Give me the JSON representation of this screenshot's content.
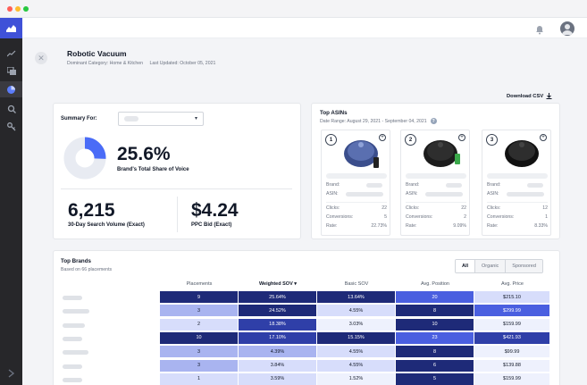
{
  "window": {
    "controls": [
      "close",
      "minimize",
      "maximize"
    ]
  },
  "sidebar": {
    "logo_icon": "hand-logo-icon",
    "items": [
      {
        "icon": "line-chart-icon",
        "active": false
      },
      {
        "icon": "layers-icon",
        "active": false
      },
      {
        "icon": "pie-chart-icon",
        "active": true
      },
      {
        "icon": "search-icon",
        "active": false
      },
      {
        "icon": "key-icon",
        "active": false
      }
    ],
    "expand_icon": "chevron-right-icon"
  },
  "topbar": {
    "bell_icon": "bell-icon",
    "avatar_icon": "user-avatar-icon"
  },
  "header": {
    "title": "Robotic Vacuum",
    "category": "Dominant Category: Home & Kitchen",
    "updated": "Last Updated: October 05, 2021"
  },
  "download_label": "Download CSV",
  "summary": {
    "label": "Summary For:",
    "share_value": "25.6%",
    "share_fraction": 0.256,
    "share_label": "Brand's Total Share of Voice",
    "search_volume": "6,215",
    "search_volume_label": "30-Day Search Volume (Exact)",
    "ppc_bid": "$4.24",
    "ppc_bid_label": "PPC Bid (Exact)"
  },
  "top_asins": {
    "title": "Top ASINs",
    "date_range": "Date Range: August 29, 2021 - September 04, 2021",
    "brand_label": "Brand:",
    "asin_label": "ASIN:",
    "clicks_label": "Clicks:",
    "conversions_label": "Conversions:",
    "rate_label": "Rate:",
    "items": [
      {
        "rank": "1",
        "clicks": "22",
        "conversions": "5",
        "rate": "22.73%",
        "color": "#3b4e8c"
      },
      {
        "rank": "2",
        "clicks": "22",
        "conversions": "2",
        "rate": "9.09%",
        "color": "#1c1c1c"
      },
      {
        "rank": "3",
        "clicks": "12",
        "conversions": "1",
        "rate": "8.33%",
        "color": "#111111"
      }
    ]
  },
  "top_brands": {
    "title": "Top Brands",
    "subtitle": "Based on 66 placements",
    "tabs": [
      "All",
      "Organic",
      "Sponsored"
    ],
    "active_tab": "All",
    "columns": [
      "Placements",
      "Weighted SOV ▾",
      "Basic SOV",
      "Avg. Position",
      "Avg. Price"
    ],
    "rows": [
      [
        "9",
        "25.64%",
        "13.64%",
        "20",
        "$215.10"
      ],
      [
        "3",
        "24.52%",
        "4.55%",
        "8",
        "$299.99"
      ],
      [
        "2",
        "18.38%",
        "3.03%",
        "10",
        "$159.99"
      ],
      [
        "10",
        "17.10%",
        "15.15%",
        "23",
        "$421.93"
      ],
      [
        "3",
        "4.39%",
        "4.55%",
        "8",
        "$99.99"
      ],
      [
        "3",
        "3.84%",
        "4.55%",
        "6",
        "$139.88"
      ],
      [
        "1",
        "3.59%",
        "1.52%",
        "5",
        "$159.99"
      ]
    ],
    "colors": {
      "dark": "#1e2a78",
      "mid_dark": "#2f3fa8",
      "blue": "#4a5fe0",
      "mid": "#a9b4f0",
      "light": "#d7ddfb",
      "pale": "#eef1fd"
    },
    "cell_shades": [
      [
        "dark",
        "dark",
        "dark",
        "blue",
        "light"
      ],
      [
        "mid",
        "dark",
        "light",
        "dark",
        "blue"
      ],
      [
        "light",
        "mid_dark",
        "pale",
        "dark",
        "pale"
      ],
      [
        "dark",
        "mid_dark",
        "dark",
        "blue",
        "mid_dark"
      ],
      [
        "mid",
        "mid",
        "light",
        "dark",
        "pale"
      ],
      [
        "mid",
        "light",
        "light",
        "dark",
        "pale"
      ],
      [
        "light",
        "light",
        "pale",
        "dark",
        "pale"
      ]
    ]
  }
}
